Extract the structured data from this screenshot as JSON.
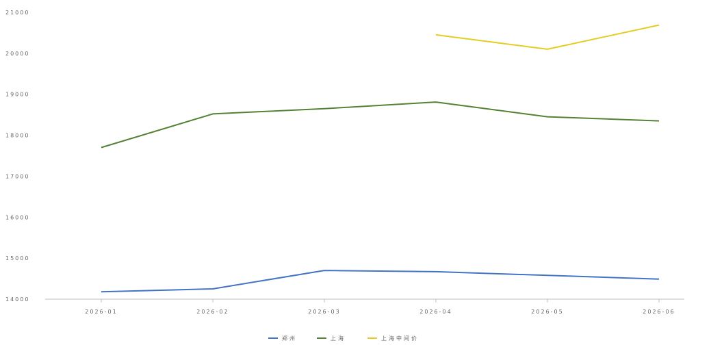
{
  "chart_data": {
    "type": "line",
    "title": "",
    "xlabel": "",
    "ylabel": "",
    "categories": [
      "2026-01",
      "2026-02",
      "2026-03",
      "2026-04",
      "2026-05",
      "2026-06"
    ],
    "ylim": [
      14000,
      21000
    ],
    "yticks": [
      14000,
      15000,
      16000,
      17000,
      18000,
      19000,
      20000,
      21000
    ],
    "grid": false,
    "legend_position": "bottom",
    "series": [
      {
        "name": "郑州",
        "color": "#4472c4",
        "values": [
          14180,
          14250,
          14700,
          14670,
          14580,
          14490
        ]
      },
      {
        "name": "上海",
        "color": "#548235",
        "values": [
          17700,
          18520,
          18650,
          18810,
          18450,
          18350
        ]
      },
      {
        "name": "上海中间价",
        "color": "#e6cc22",
        "values": [
          null,
          null,
          null,
          20450,
          20100,
          20690
        ]
      }
    ]
  }
}
